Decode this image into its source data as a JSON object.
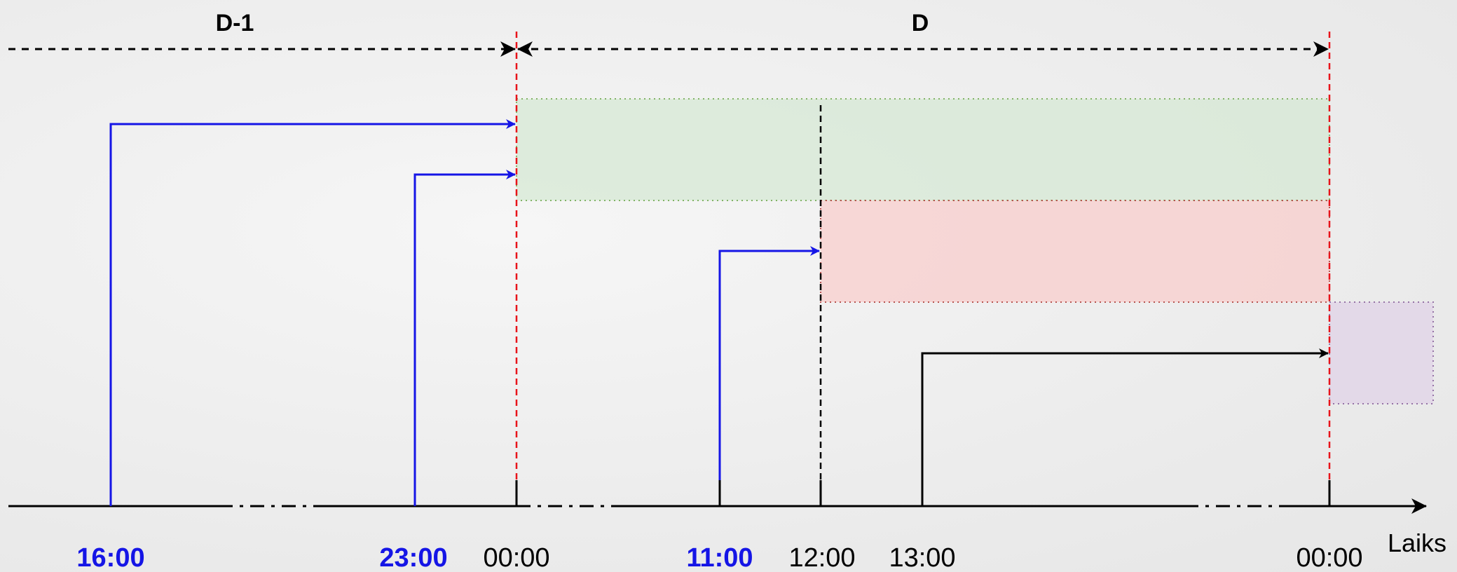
{
  "periods": {
    "previous_day": "D-1",
    "day": "D"
  },
  "axis_label": "Laiks",
  "ticks": [
    {
      "label": "16:00",
      "color": "#1515e6",
      "bold": true
    },
    {
      "label": "23:00",
      "color": "#1515e6",
      "bold": true
    },
    {
      "label": "00:00",
      "color": "#000000",
      "bold": false
    },
    {
      "label": "11:00",
      "color": "#1515e6",
      "bold": true
    },
    {
      "label": "12:00",
      "color": "#000000",
      "bold": false
    },
    {
      "label": "13:00",
      "color": "#000000",
      "bold": false
    },
    {
      "label": "00:00",
      "color": "#000000",
      "bold": false
    }
  ],
  "colors": {
    "blue_arrow": "#1515e6",
    "black_arrow": "#000000",
    "day_boundary": "#e8131a",
    "green_band": "#d5e8d4",
    "red_band": "#f8cecc",
    "purple_band": "#e1d5e7",
    "green_border": "#82b366",
    "red_border": "#b85450",
    "purple_border": "#9673a6"
  }
}
